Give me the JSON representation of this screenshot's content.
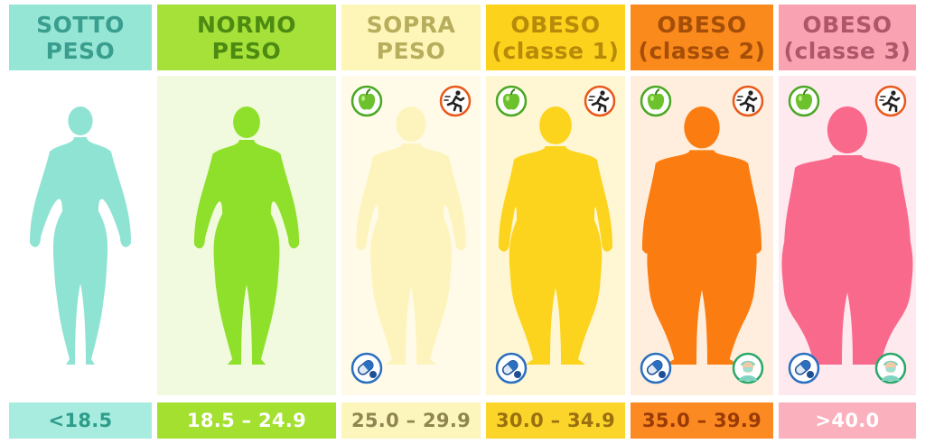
{
  "categories": [
    {
      "id": "sotto",
      "title_line1": "SOTTO",
      "title_line2": "PESO",
      "range": "<18.5",
      "colors": {
        "head_bg": "#96e6d6",
        "head_text": "#3a9e8e",
        "body_bg": "#ffffff",
        "figure": "#8fe3d3",
        "foot_bg": "#a8ece0",
        "foot_text": "#2d9c8a"
      },
      "icons": []
    },
    {
      "id": "normo",
      "title_line1": "NORMO",
      "title_line2": "PESO",
      "range": "18.5 – 24.9",
      "colors": {
        "head_bg": "#a6e13a",
        "head_text": "#4c8a12",
        "body_bg": "#f1f9de",
        "figure": "#8ee02a",
        "foot_bg": "#a3e030",
        "foot_text": "#ffffff"
      },
      "icons": []
    },
    {
      "id": "sopra",
      "title_line1": "SOPRA",
      "title_line2": "PESO",
      "range": "25.0 – 29.9",
      "colors": {
        "head_bg": "#fdf6b8",
        "head_text": "#b7ad5c",
        "body_bg": "#fffbe8",
        "figure": "#fdf4bd",
        "foot_bg": "#fdf6bc",
        "foot_text": "#8f8550"
      },
      "icons": [
        "apple-icon",
        "running-icon",
        "pills-icon"
      ]
    },
    {
      "id": "obeso1",
      "title_line1": "OBESO",
      "title_line2": "(classe 1)",
      "range": "30.0 – 34.9",
      "colors": {
        "head_bg": "#fcd21c",
        "head_text": "#b88a0a",
        "body_bg": "#fff7d4",
        "figure": "#fcd41e",
        "foot_bg": "#fcd52a",
        "foot_text": "#9a7010"
      },
      "icons": [
        "apple-icon",
        "running-icon",
        "pills-icon"
      ]
    },
    {
      "id": "obeso2",
      "title_line1": "OBESO",
      "title_line2": "(classe 2)",
      "range": "35.0 – 39.9",
      "colors": {
        "head_bg": "#fb8a1c",
        "head_text": "#a44e08",
        "body_bg": "#ffeedd",
        "figure": "#fb7d12",
        "foot_bg": "#fb8a22",
        "foot_text": "#9a3a06"
      },
      "icons": [
        "apple-icon",
        "running-icon",
        "pills-icon",
        "surgeon-icon"
      ]
    },
    {
      "id": "obeso3",
      "title_line1": "OBESO",
      "title_line2": "(classe 3)",
      "range": ">40.0",
      "colors": {
        "head_bg": "#f9a3b2",
        "head_text": "#b0566a",
        "body_bg": "#fde9ee",
        "figure": "#f8698c",
        "foot_bg": "#fbb0bd",
        "foot_text": "#ffffff"
      },
      "icons": [
        "apple-icon",
        "running-icon",
        "pills-icon",
        "surgeon-icon"
      ]
    }
  ]
}
